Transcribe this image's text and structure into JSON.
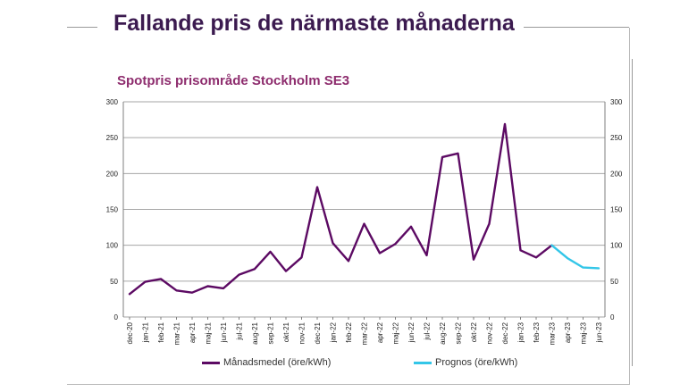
{
  "slide": {
    "title": "Fallande pris de närmaste månaderna"
  },
  "colors": {
    "title": "#3b1a4f",
    "chart_title": "#8e2d6e",
    "monthly": "#5c0a63",
    "forecast": "#33c6e8",
    "grid": "#a6a6a6"
  },
  "chart_data": {
    "type": "line",
    "title": "Spotpris prisområde Stockholm SE3",
    "xlabel": "",
    "ylabel": "",
    "ylim": [
      0,
      300
    ],
    "yticks": [
      0,
      50,
      100,
      150,
      200,
      250,
      300
    ],
    "secondary_yaxis": true,
    "grid": "horizontal",
    "legend_position": "bottom",
    "categories": [
      "dec-20",
      "jan-21",
      "feb-21",
      "mar-21",
      "apr-21",
      "maj-21",
      "jun-21",
      "jul-21",
      "aug-21",
      "sep-21",
      "okt-21",
      "nov-21",
      "dec-21",
      "jan-22",
      "feb-22",
      "mar-22",
      "apr-22",
      "maj-22",
      "jun-22",
      "jul-22",
      "aug-22",
      "sep-22",
      "okt-22",
      "nov-22",
      "dec-22",
      "jan-23",
      "feb-23",
      "mar-23",
      "apr-23",
      "maj-23",
      "jun-23"
    ],
    "series": [
      {
        "name": "Månadsmedel (öre/kWh)",
        "color": "#5c0a63",
        "values": [
          32,
          49,
          53,
          37,
          34,
          43,
          40,
          59,
          67,
          91,
          64,
          83,
          181,
          103,
          78,
          130,
          89,
          102,
          126,
          86,
          223,
          228,
          80,
          130,
          269,
          93,
          83,
          100,
          null,
          null,
          null
        ]
      },
      {
        "name": "Prognos (öre/kWh)",
        "color": "#33c6e8",
        "values": [
          null,
          null,
          null,
          null,
          null,
          null,
          null,
          null,
          null,
          null,
          null,
          null,
          null,
          null,
          null,
          null,
          null,
          null,
          null,
          null,
          null,
          null,
          null,
          null,
          null,
          null,
          null,
          100,
          82,
          69,
          68
        ]
      }
    ]
  }
}
